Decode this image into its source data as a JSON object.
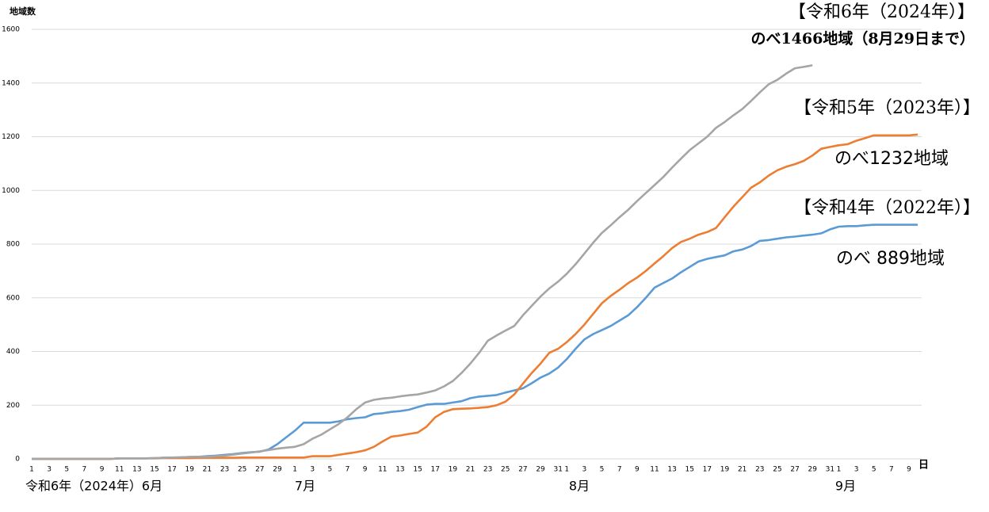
{
  "chart_data": {
    "type": "line",
    "y_label": "地域数",
    "x_label": "日",
    "month_labels": [
      "令和6年（2024年）6月",
      "7月",
      "8月",
      "9月"
    ],
    "annotations": [
      "【令和6年（2024年）】",
      "のべ1466地域（8月29日まで）",
      "【令和5年（2023年）】",
      "のべ1232地域",
      "【令和4年（2022年）】",
      "のべ 889地域"
    ],
    "categories": [
      "1",
      null,
      "3",
      null,
      "5",
      null,
      "7",
      null,
      "9",
      null,
      "11",
      null,
      "13",
      null,
      "15",
      null,
      "17",
      null,
      "19",
      null,
      "21",
      null,
      "23",
      null,
      "25",
      null,
      "27",
      null,
      "29",
      null,
      "1",
      null,
      "3",
      null,
      "5",
      null,
      "7",
      null,
      "9",
      null,
      "11",
      null,
      "13",
      null,
      "15",
      null,
      "17",
      null,
      "19",
      null,
      "21",
      null,
      "23",
      null,
      "25",
      null,
      "27",
      null,
      "29",
      null,
      "31",
      "1",
      null,
      "3",
      null,
      "5",
      null,
      "7",
      null,
      "9",
      null,
      "11",
      null,
      "13",
      null,
      "15",
      null,
      "17",
      null,
      "19",
      null,
      "21",
      null,
      "23",
      null,
      "25",
      null,
      "27",
      null,
      "29",
      null,
      "31",
      "1",
      null,
      "3",
      null,
      "5",
      null,
      "7",
      null,
      "9",
      null
    ],
    "series": [
      {
        "color": "#5b9bd5",
        "values": [
          0,
          0,
          0,
          0,
          0,
          0,
          0,
          0,
          0,
          0,
          2,
          2,
          2,
          2,
          3,
          4,
          5,
          6,
          7,
          8,
          10,
          12,
          15,
          18,
          22,
          25,
          27,
          35,
          55,
          80,
          105,
          135,
          135,
          135,
          135,
          140,
          148,
          152,
          155,
          167,
          170,
          175,
          178,
          183,
          193,
          202,
          205,
          205,
          210,
          215,
          226,
          232,
          235,
          238,
          247,
          255,
          263,
          282,
          303,
          318,
          340,
          372,
          410,
          445,
          465,
          480,
          495,
          515,
          535,
          565,
          600,
          638,
          655,
          672,
          695,
          715,
          735,
          745,
          752,
          758,
          773,
          780,
          793,
          812,
          815,
          820,
          825,
          828,
          832,
          835,
          840,
          855,
          865,
          867,
          867,
          870,
          872,
          872,
          872,
          872,
          872,
          872
        ]
      },
      {
        "color": "#ed7d31",
        "values": [
          0,
          0,
          0,
          0,
          0,
          0,
          0,
          0,
          0,
          0,
          2,
          2,
          2,
          2,
          2,
          3,
          3,
          3,
          3,
          4,
          4,
          4,
          4,
          4,
          5,
          5,
          5,
          5,
          5,
          5,
          5,
          5,
          10,
          10,
          10,
          15,
          20,
          25,
          32,
          45,
          65,
          83,
          87,
          93,
          98,
          120,
          155,
          175,
          185,
          187,
          188,
          190,
          193,
          200,
          213,
          240,
          280,
          320,
          355,
          395,
          410,
          435,
          465,
          500,
          540,
          580,
          607,
          630,
          655,
          675,
          700,
          728,
          755,
          785,
          808,
          820,
          835,
          845,
          860,
          900,
          940,
          975,
          1010,
          1030,
          1055,
          1075,
          1088,
          1098,
          1110,
          1130,
          1155,
          1162,
          1168,
          1172,
          1185,
          1195,
          1205,
          1205,
          1205,
          1205,
          1205,
          1208
        ]
      },
      {
        "color": "#a5a5a5",
        "values": [
          0,
          0,
          0,
          0,
          0,
          0,
          0,
          0,
          0,
          0,
          2,
          2,
          2,
          2,
          3,
          4,
          5,
          6,
          7,
          8,
          8,
          10,
          12,
          16,
          20,
          24,
          28,
          33,
          38,
          42,
          45,
          55,
          75,
          90,
          110,
          130,
          155,
          185,
          210,
          220,
          225,
          228,
          233,
          237,
          240,
          247,
          255,
          270,
          290,
          320,
          355,
          395,
          440,
          460,
          478,
          495,
          535,
          570,
          605,
          635,
          660,
          690,
          725,
          765,
          805,
          842,
          870,
          900,
          928,
          960,
          990,
          1020,
          1050,
          1085,
          1118,
          1150,
          1175,
          1200,
          1233,
          1255,
          1280,
          1303,
          1333,
          1365,
          1395,
          1412,
          1435,
          1455,
          1460,
          1466,
          null,
          null,
          null,
          null,
          null,
          null,
          null,
          null,
          null,
          null,
          null,
          null
        ]
      }
    ],
    "ylim": [
      0,
      1600
    ],
    "yticks": [
      0,
      200,
      400,
      600,
      800,
      1000,
      1200,
      1400,
      1600
    ],
    "grid": true
  }
}
